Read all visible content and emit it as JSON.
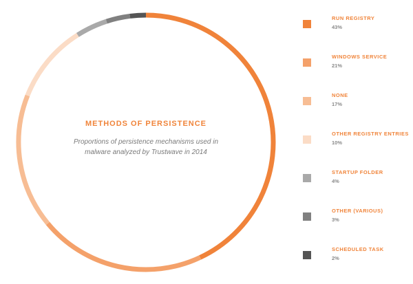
{
  "chart_data": {
    "type": "pie",
    "title": "METHODS OF PERSISTENCE",
    "subtitle": "Proportions of persistence mechanisms used in malware analyzed by Trustwave in 2014",
    "categories": [
      "RUN REGISTRY",
      "WINDOWS SERVICE",
      "NONE",
      "OTHER REGISTRY ENTRIES",
      "STARTUP FOLDER",
      "OTHER (VARIOUS)",
      "SCHEDULED TASK"
    ],
    "values": [
      43,
      21,
      17,
      10,
      4,
      3,
      2
    ],
    "value_labels": [
      "43%",
      "21%",
      "17%",
      "10%",
      "4%",
      "3%",
      "2%"
    ],
    "colors": [
      "#f0833a",
      "#f4a16a",
      "#f7bd94",
      "#fbdcc6",
      "#a9a9a9",
      "#808080",
      "#555555"
    ],
    "legend_position": "right"
  }
}
